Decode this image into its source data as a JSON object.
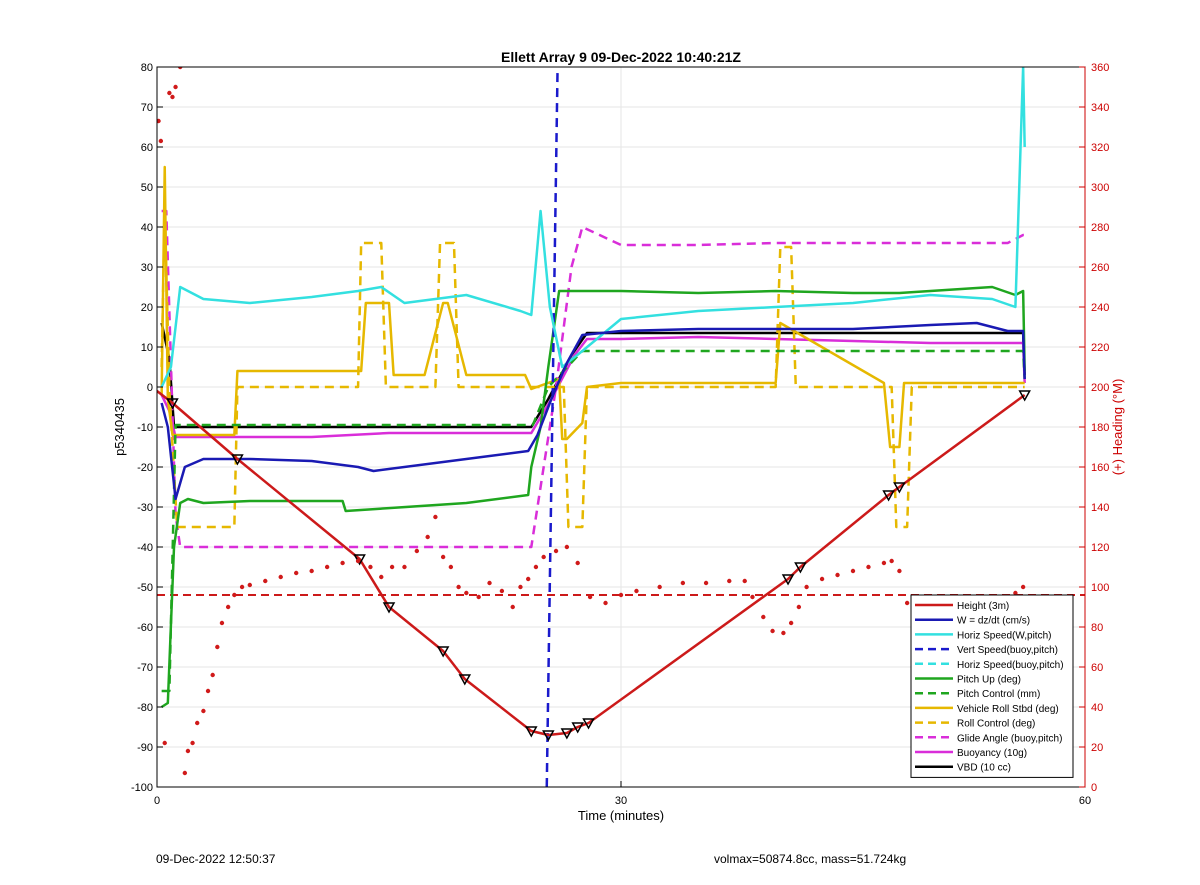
{
  "footer": {
    "left": "09-Dec-2022 12:50:37",
    "right": "volmax=50874.8cc, mass=51.724kg"
  },
  "chart_data": {
    "type": "line",
    "title": "Ellett Array 9 09-Dec-2022 10:40:21Z",
    "xlabel": "Time (minutes)",
    "ylabel": "p5340435",
    "y2label": "(+) Heading (°M)",
    "xlim": [
      0,
      60
    ],
    "ylim": [
      -100,
      80
    ],
    "y2lim": [
      0,
      360
    ],
    "xticks": [
      0,
      30,
      60
    ],
    "yticks": [
      -100,
      -90,
      -80,
      -70,
      -60,
      -50,
      -40,
      -30,
      -20,
      -10,
      0,
      10,
      20,
      30,
      40,
      50,
      60,
      70,
      80
    ],
    "y2ticks": [
      0,
      20,
      40,
      60,
      80,
      100,
      120,
      140,
      160,
      180,
      200,
      220,
      240,
      260,
      280,
      300,
      320,
      340,
      360
    ],
    "grid": true,
    "legend_position": "bottom-right",
    "colors": {
      "axis_left": "#000000",
      "axis_right": "#cc0000",
      "grid": "#e6e6e6"
    },
    "series": [
      {
        "name": "Height (3m)",
        "color": "#cc1a1a",
        "dash": "solid",
        "markers": "triangle",
        "x": [
          0,
          1.0,
          5.2,
          13.1,
          15.0,
          18.5,
          19.9,
          24.2,
          25.3,
          26.5,
          27.2,
          27.9,
          40.8,
          41.6,
          47.3,
          48.0,
          56.1
        ],
        "y": [
          -1,
          -4,
          -18,
          -43,
          -55,
          -66,
          -73,
          -86,
          -87,
          -86.5,
          -85,
          -84,
          -48,
          -45,
          -27,
          -25,
          -2
        ]
      },
      {
        "name": "W = dz/dt (cm/s)",
        "color": "#1a1ab3",
        "dash": "solid",
        "x": [
          0.3,
          0.7,
          1.2,
          1.8,
          3,
          6,
          10,
          13,
          14,
          20,
          24,
          24.6,
          25.5,
          26.5,
          27.5,
          30,
          35,
          40,
          45,
          50,
          53,
          55,
          56,
          56.1
        ],
        "y": [
          -4,
          -10,
          -28,
          -20,
          -18,
          -18,
          -18.5,
          -20,
          -21,
          -18,
          -16,
          -12,
          -3,
          6,
          13,
          14,
          14.5,
          14.5,
          14.5,
          15.5,
          16,
          14,
          14,
          2
        ]
      },
      {
        "name": "Horiz Speed(W,pitch)",
        "color": "#33e0e0",
        "dash": "solid",
        "x": [
          0.3,
          0.9,
          1.5,
          3,
          6,
          10,
          13,
          14.5,
          16,
          20,
          23.5,
          24.2,
          24.8,
          25.4,
          26.2,
          27.5,
          30,
          35,
          40,
          45,
          50,
          54,
          55.5,
          56,
          56.1
        ],
        "y": [
          0,
          5,
          25,
          22,
          21,
          22.5,
          24,
          25,
          21,
          23,
          19,
          18,
          44,
          20,
          5,
          9,
          17,
          19,
          20,
          21,
          23,
          22,
          20,
          80,
          60
        ]
      },
      {
        "name": "Vert Speed(buoy,pitch)",
        "color": "#1a1acc",
        "dash": "dashed",
        "x": [
          25.2,
          25.9
        ],
        "y": [
          -100,
          80
        ]
      },
      {
        "name": "Horiz Speed(buoy,pitch)",
        "color": "#33e0e0",
        "dash": "dashed",
        "x": [],
        "y": []
      },
      {
        "name": "Pitch Up (deg)",
        "color": "#1fa61f",
        "dash": "solid",
        "x": [
          0.3,
          0.7,
          1.1,
          1.5,
          2,
          3,
          6,
          10,
          12,
          12.2,
          20,
          24,
          24.2,
          24.8,
          25.3,
          26,
          30,
          35,
          40,
          45,
          48,
          50,
          54,
          55.5,
          56,
          56.1
        ],
        "y": [
          -80,
          -79,
          -40,
          -29,
          -28,
          -29,
          -28.5,
          -28.5,
          -28.5,
          -31,
          -29,
          -27,
          -20,
          -10,
          5,
          24,
          24,
          23.5,
          24,
          23.5,
          23.5,
          24,
          25,
          23,
          24,
          4
        ]
      },
      {
        "name": "Pitch Control (mm)",
        "color": "#1fa61f",
        "dash": "dashed",
        "x": [
          0.3,
          0.8,
          1.2,
          5,
          15,
          24.3,
          25.3,
          27.5,
          36,
          42,
          48,
          55,
          56,
          56.1
        ],
        "y": [
          -76,
          -76,
          -9.5,
          -9.5,
          -9.5,
          -9.5,
          0,
          9,
          9,
          9,
          9,
          9,
          9,
          2
        ]
      },
      {
        "name": "Vehicle Roll Stbd (deg)",
        "color": "#e6b800",
        "dash": "solid",
        "x": [
          0.3,
          0.5,
          0.7,
          1.0,
          1.5,
          5,
          5.2,
          10,
          13.2,
          13.5,
          15,
          15.3,
          17.3,
          18.5,
          18.8,
          20,
          20.3,
          23.8,
          24.2,
          26,
          26.2,
          26.5,
          27.5,
          27.8,
          30,
          35,
          40,
          40.3,
          47,
          47.4,
          48.0,
          48.3,
          50,
          56,
          56.1
        ],
        "y": [
          -2,
          55,
          -3,
          -12,
          -12,
          -12,
          4,
          4,
          4,
          21,
          21,
          3,
          3,
          21,
          21,
          3,
          3,
          3,
          -0.5,
          2,
          -13,
          -13,
          -9,
          0,
          1,
          1,
          1,
          16,
          1,
          -15,
          -15,
          1,
          1,
          1,
          1
        ]
      },
      {
        "name": "Roll Control (deg)",
        "color": "#e6b800",
        "dash": "dashed",
        "x": [
          0.3,
          0.5,
          0.8,
          1.3,
          5,
          5.2,
          13,
          13.2,
          14.5,
          14.8,
          18.0,
          18.3,
          19.2,
          19.5,
          23.8,
          24.2,
          26.3,
          26.6,
          27.5,
          27.8,
          40,
          40.3,
          41,
          41.3,
          47.5,
          47.8,
          48.5,
          48.8,
          56,
          56.1
        ],
        "y": [
          5,
          45,
          -1,
          -35,
          -35,
          0,
          0,
          36,
          36,
          0,
          0,
          36,
          36,
          0,
          0,
          0,
          0,
          -35,
          -35,
          0,
          0,
          35,
          35,
          0,
          0,
          -35,
          -35,
          0,
          0,
          0
        ]
      },
      {
        "name": "Glide Angle (buoy,pitch)",
        "color": "#d92ed9",
        "dash": "dashed",
        "x": [
          0.3,
          0.6,
          1.2,
          1.5,
          5,
          10,
          15,
          20,
          23.5,
          24.2,
          25.8,
          26.8,
          27.5,
          30,
          35,
          40,
          45,
          50,
          55,
          56,
          56.1
        ],
        "y": [
          44,
          44,
          -32,
          -40,
          -40,
          -40,
          -40,
          -40,
          -40,
          -40,
          0,
          30,
          40,
          35.5,
          35.5,
          36,
          36,
          36,
          36,
          38,
          38
        ]
      },
      {
        "name": "Buoyancy (10g)",
        "color": "#d92ed9",
        "dash": "solid",
        "x": [
          0.3,
          0.8,
          1.2,
          5,
          10,
          15,
          24.2,
          25.5,
          27,
          27.8,
          30,
          35,
          40,
          45,
          50,
          55,
          56,
          56.1
        ],
        "y": [
          -2,
          -6,
          -12.5,
          -12.5,
          -12.5,
          -11.5,
          -11.5,
          -3,
          8,
          12,
          12,
          12.5,
          12,
          11.5,
          11,
          11,
          11,
          1
        ]
      },
      {
        "name": "VBD (10 cc)",
        "color": "#000000",
        "dash": "solid",
        "x": [
          0.3,
          0.8,
          1.1,
          5,
          10,
          15,
          24.2,
          25.3,
          26.8,
          27.8,
          30,
          35,
          40,
          45,
          50,
          55,
          56,
          56.1
        ],
        "y": [
          16,
          7,
          -10,
          -10,
          -10,
          -10,
          -10,
          -3,
          8,
          13.5,
          13.5,
          13.5,
          13.5,
          13.5,
          13.5,
          13.5,
          13.5,
          3
        ]
      }
    ],
    "hlines": [
      {
        "y": -52,
        "color": "#cc1a1a",
        "dash": "dashed"
      }
    ],
    "heading_scatter": {
      "color": "#d01a1a",
      "axis": "right",
      "x": [
        0.1,
        0.25,
        0.5,
        0.8,
        1.0,
        1.2,
        1.5,
        1.8,
        2.0,
        2.3,
        2.6,
        3.0,
        3.3,
        3.6,
        3.9,
        4.2,
        4.6,
        5.0,
        5.5,
        6,
        7,
        8,
        9,
        10,
        11,
        12,
        13,
        13.8,
        14.5,
        15.2,
        16.0,
        16.8,
        17.5,
        18.0,
        18.5,
        19.0,
        19.5,
        20.0,
        20.8,
        21.5,
        22.3,
        23.0,
        23.5,
        24.0,
        24.5,
        25.0,
        25.8,
        26.5,
        27.2,
        28.0,
        29.0,
        30.0,
        31.0,
        32.5,
        34,
        35.5,
        37,
        38,
        38.5,
        39.2,
        39.8,
        40.5,
        41,
        41.5,
        42,
        43,
        44,
        45,
        46,
        47,
        47.5,
        48,
        48.5,
        49,
        50,
        51,
        52,
        53,
        54,
        55,
        55.5,
        56
      ],
      "y": [
        333,
        323,
        22,
        347,
        345,
        350,
        360,
        7,
        18,
        22,
        32,
        38,
        48,
        56,
        70,
        82,
        90,
        96,
        100,
        101,
        103,
        105,
        107,
        108,
        110,
        112,
        113,
        110,
        105,
        110,
        110,
        118,
        125,
        135,
        115,
        110,
        100,
        97,
        95,
        102,
        98,
        90,
        100,
        104,
        110,
        115,
        118,
        120,
        112,
        95,
        92,
        96,
        98,
        100,
        102,
        102,
        103,
        103,
        95,
        85,
        78,
        77,
        82,
        90,
        100,
        104,
        106,
        108,
        110,
        112,
        113,
        108,
        92,
        90,
        90,
        89,
        87,
        85,
        90,
        90,
        97,
        100
      ]
    }
  }
}
